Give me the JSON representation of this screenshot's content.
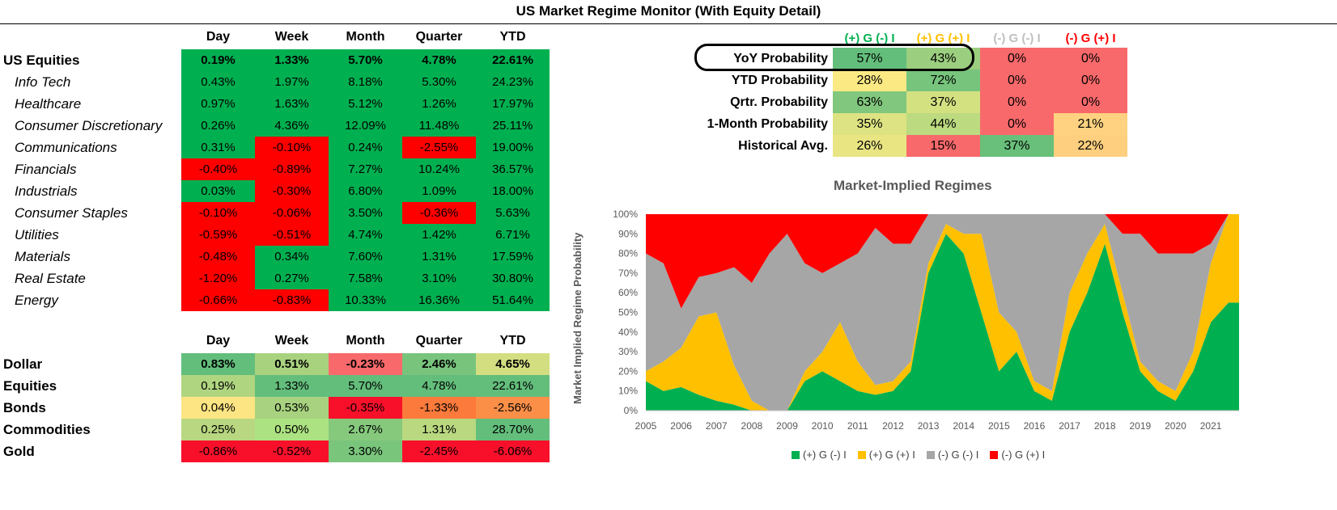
{
  "title": "US Market Regime Monitor (With Equity Detail)",
  "colors": {
    "green": "#00b050",
    "red": "#ff0000",
    "lightgreen": "#92d050",
    "yellow": "#ffc000",
    "gray": "#a6a6a6"
  },
  "equity_table": {
    "headers": [
      "Day",
      "Week",
      "Month",
      "Quarter",
      "YTD"
    ],
    "rows": [
      {
        "label": "US Equities",
        "values": [
          "0.19%",
          "1.33%",
          "5.70%",
          "4.78%",
          "22.61%"
        ]
      },
      {
        "label": "Info Tech",
        "values": [
          "0.43%",
          "1.97%",
          "8.18%",
          "5.30%",
          "24.23%"
        ]
      },
      {
        "label": "Healthcare",
        "values": [
          "0.97%",
          "1.63%",
          "5.12%",
          "1.26%",
          "17.97%"
        ]
      },
      {
        "label": "Consumer Discretionary",
        "values": [
          "0.26%",
          "4.36%",
          "12.09%",
          "11.48%",
          "25.11%"
        ]
      },
      {
        "label": "Communications",
        "values": [
          "0.31%",
          "-0.10%",
          "0.24%",
          "-2.55%",
          "19.00%"
        ]
      },
      {
        "label": "Financials",
        "values": [
          "-0.40%",
          "-0.89%",
          "7.27%",
          "10.24%",
          "36.57%"
        ]
      },
      {
        "label": "Industrials",
        "values": [
          "0.03%",
          "-0.30%",
          "6.80%",
          "1.09%",
          "18.00%"
        ]
      },
      {
        "label": "Consumer Staples",
        "values": [
          "-0.10%",
          "-0.06%",
          "3.50%",
          "-0.36%",
          "5.63%"
        ]
      },
      {
        "label": "Utilities",
        "values": [
          "-0.59%",
          "-0.51%",
          "4.74%",
          "1.42%",
          "6.71%"
        ]
      },
      {
        "label": "Materials",
        "values": [
          "-0.48%",
          "0.34%",
          "7.60%",
          "1.31%",
          "17.59%"
        ]
      },
      {
        "label": "Real Estate",
        "values": [
          "-1.20%",
          "0.27%",
          "7.58%",
          "3.10%",
          "30.80%"
        ]
      },
      {
        "label": "Energy",
        "values": [
          "-0.66%",
          "-0.83%",
          "10.33%",
          "16.36%",
          "51.64%"
        ]
      }
    ]
  },
  "asset_table": {
    "headers": [
      "Day",
      "Week",
      "Month",
      "Quarter",
      "YTD"
    ],
    "rows": [
      {
        "label": "Dollar",
        "values": [
          "0.83%",
          "0.51%",
          "-0.23%",
          "2.46%",
          "4.65%"
        ],
        "fills": [
          "#63be7b",
          "#a9d27f",
          "#f8696b",
          "#78c47d",
          "#d3de81"
        ]
      },
      {
        "label": "Equities",
        "values": [
          "0.19%",
          "1.33%",
          "5.70%",
          "4.78%",
          "22.61%"
        ],
        "fills": [
          "#b0d580",
          "#63be7b",
          "#63be7b",
          "#63be7b",
          "#63be7b"
        ]
      },
      {
        "label": "Bonds",
        "values": [
          "0.04%",
          "0.53%",
          "-0.35%",
          "-1.33%",
          "-2.56%"
        ],
        "fills": [
          "#fde583",
          "#a8d27f",
          "#f8102a",
          "#fc7a3b",
          "#fb8f48"
        ]
      },
      {
        "label": "Commodities",
        "values": [
          "0.25%",
          "0.50%",
          "2.67%",
          "1.31%",
          "28.70%"
        ],
        "fills": [
          "#b8d780",
          "#ace281",
          "#86c97d",
          "#b9d880",
          "#63be7b"
        ]
      },
      {
        "label": "Gold",
        "values": [
          "-0.86%",
          "-0.52%",
          "3.30%",
          "-2.45%",
          "-6.06%"
        ],
        "fills": [
          "#f8102a",
          "#f8102a",
          "#7ac57c",
          "#f8102a",
          "#f8102a"
        ]
      }
    ]
  },
  "regime_table": {
    "headers": [
      {
        "text": "(+) G (-) I",
        "color": "#00b050"
      },
      {
        "text": "(+) G (+) I",
        "color": "#ffc000"
      },
      {
        "text": "(-) G (-) I",
        "color": "#bfbfbf"
      },
      {
        "text": "(-) G (+) I",
        "color": "#ff0000"
      }
    ],
    "rows": [
      {
        "label": "YoY Probability",
        "values": [
          "57%",
          "43%",
          "0%",
          "0%"
        ],
        "fills": [
          "#63be7b",
          "#9bce7f",
          "#f8696b",
          "#f8696b"
        ]
      },
      {
        "label": "YTD Probability",
        "values": [
          "28%",
          "72%",
          "0%",
          "0%"
        ],
        "fills": [
          "#fbe983",
          "#77c47d",
          "#f8696b",
          "#f8696b"
        ]
      },
      {
        "label": "Qrtr. Probability",
        "values": [
          "63%",
          "37%",
          "0%",
          "0%"
        ],
        "fills": [
          "#81c77d",
          "#d4e181",
          "#f8696b",
          "#f8696b"
        ]
      },
      {
        "label": "1-Month Probability",
        "values": [
          "35%",
          "44%",
          "0%",
          "21%"
        ],
        "fills": [
          "#dde382",
          "#bcda80",
          "#f8696b",
          "#fed280"
        ]
      },
      {
        "label": "Historical Avg.",
        "values": [
          "26%",
          "15%",
          "37%",
          "22%"
        ],
        "fills": [
          "#e9e583",
          "#f8696b",
          "#69c07b",
          "#fdcf7e"
        ]
      }
    ]
  },
  "chart_data": {
    "type": "area",
    "title": "Market-Implied Regimes",
    "ylabel": "Market Implied Regime Probability",
    "xlabel": "",
    "x": [
      2005.0,
      2005.5,
      2006.0,
      2006.5,
      2007.0,
      2007.5,
      2008.0,
      2008.5,
      2009.0,
      2009.5,
      2010.0,
      2010.5,
      2011.0,
      2011.5,
      2012.0,
      2012.5,
      2013.0,
      2013.5,
      2014.0,
      2014.5,
      2015.0,
      2015.5,
      2016.0,
      2016.5,
      2017.0,
      2017.5,
      2018.0,
      2018.5,
      2019.0,
      2019.5,
      2020.0,
      2020.5,
      2021.0,
      2021.5
    ],
    "xticks": [
      "2005",
      "2006",
      "2007",
      "2008",
      "2009",
      "2010",
      "2011",
      "2012",
      "2013",
      "2014",
      "2015",
      "2016",
      "2017",
      "2018",
      "2019",
      "2020",
      "2021"
    ],
    "yticks": [
      "0%",
      "10%",
      "20%",
      "30%",
      "40%",
      "50%",
      "60%",
      "70%",
      "80%",
      "90%",
      "100%"
    ],
    "ylim": [
      0,
      100
    ],
    "series": [
      {
        "name": "(+) G (-) I",
        "color": "#00b050",
        "values": [
          15,
          10,
          12,
          8,
          5,
          3,
          0,
          0,
          0,
          15,
          20,
          15,
          10,
          8,
          10,
          20,
          70,
          90,
          80,
          50,
          20,
          30,
          10,
          5,
          40,
          60,
          85,
          50,
          20,
          10,
          5,
          20,
          45,
          55
        ]
      },
      {
        "name": "(+) G (+) I",
        "color": "#ffc000",
        "values": [
          5,
          15,
          20,
          40,
          45,
          20,
          5,
          0,
          0,
          5,
          10,
          30,
          15,
          5,
          5,
          5,
          5,
          5,
          10,
          40,
          30,
          10,
          5,
          5,
          20,
          20,
          10,
          10,
          5,
          5,
          5,
          10,
          30,
          45
        ]
      },
      {
        "name": "(-) G (-) I",
        "color": "#a6a6a6",
        "values": [
          60,
          50,
          20,
          20,
          20,
          50,
          60,
          80,
          90,
          55,
          40,
          30,
          55,
          80,
          70,
          60,
          25,
          5,
          10,
          10,
          50,
          60,
          85,
          90,
          40,
          20,
          5,
          30,
          65,
          65,
          70,
          50,
          10,
          0
        ]
      },
      {
        "name": "(-) G (+) I",
        "color": "#ff0000",
        "values": [
          20,
          25,
          48,
          32,
          30,
          27,
          35,
          20,
          10,
          25,
          30,
          25,
          20,
          7,
          15,
          15,
          0,
          0,
          0,
          0,
          0,
          0,
          0,
          0,
          0,
          0,
          0,
          10,
          10,
          20,
          20,
          20,
          15,
          0
        ]
      }
    ],
    "legend": [
      "(+) G (-) I",
      "(+) G (+) I",
      "(-) G (-) I",
      "(-) G (+) I"
    ]
  }
}
